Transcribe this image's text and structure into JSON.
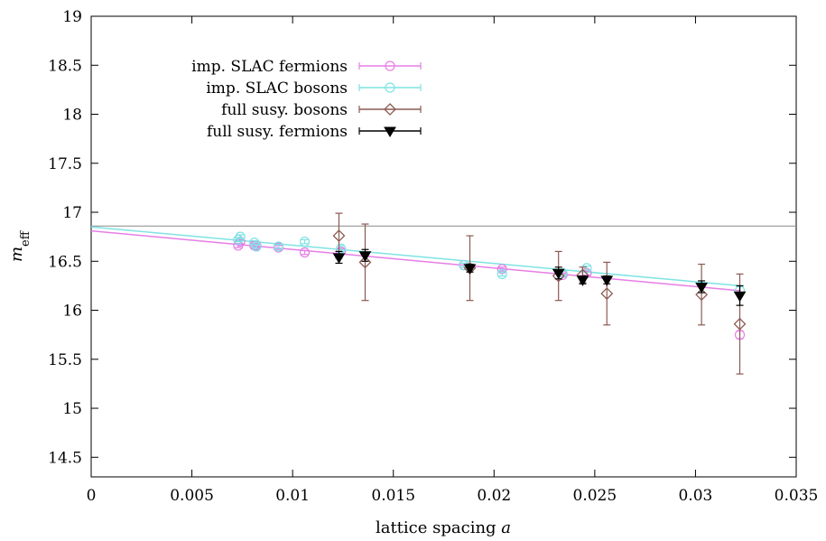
{
  "chart_data": {
    "type": "scatter",
    "xlabel": "lattice spacing a",
    "ylabel": "m_eff",
    "ylabel_main": "m",
    "ylabel_sub": "eff",
    "xlim": [
      0,
      0.035
    ],
    "ylim": [
      14.3,
      19
    ],
    "x_ticks": [
      0,
      0.005,
      0.01,
      0.015,
      0.02,
      0.025,
      0.03,
      0.035
    ],
    "x_tick_labels": [
      "0",
      "0.005",
      "0.01",
      "0.015",
      "0.02",
      "0.025",
      "0.03",
      "0.035"
    ],
    "y_ticks": [
      14.5,
      15,
      15.5,
      16,
      16.5,
      17,
      17.5,
      18,
      18.5,
      19
    ],
    "y_tick_labels": [
      "14.5",
      "15",
      "15.5",
      "16",
      "16.5",
      "17",
      "17.5",
      "18",
      "18.5",
      "19"
    ],
    "legend_position": "top-left",
    "reference_line": {
      "y": 16.86,
      "color": "#888888"
    },
    "series": [
      {
        "name": "imp. SLAC fermions",
        "color": "#e67ee6",
        "marker": "circle-open",
        "x": [
          0.0073,
          0.0074,
          0.0081,
          0.0082,
          0.0093,
          0.0106,
          0.0124,
          0.0185,
          0.0204,
          0.0234,
          0.0246,
          0.0322
        ],
        "y": [
          16.66,
          16.7,
          16.66,
          16.66,
          16.64,
          16.59,
          16.6,
          16.46,
          16.42,
          16.36,
          16.38,
          15.75
        ],
        "err": [
          0.02,
          0.02,
          0.02,
          0.02,
          0.02,
          0.02,
          0.03,
          0.02,
          0.02,
          0.02,
          0.02,
          0.04
        ],
        "fit": {
          "x": [
            0,
            0.0322
          ],
          "y": [
            16.81,
            16.2
          ]
        }
      },
      {
        "name": "imp. SLAC bosons",
        "color": "#7fe3e3",
        "marker": "circle-open",
        "x": [
          0.0073,
          0.0074,
          0.0081,
          0.0082,
          0.0093,
          0.0106,
          0.0124,
          0.0185,
          0.0204,
          0.0234,
          0.0246,
          0.0322
        ],
        "y": [
          16.72,
          16.75,
          16.69,
          16.65,
          16.65,
          16.7,
          16.63,
          16.46,
          16.37,
          16.38,
          16.43,
          16.2
        ],
        "err": [
          0.02,
          0.02,
          0.02,
          0.02,
          0.02,
          0.02,
          0.03,
          0.02,
          0.02,
          0.02,
          0.02,
          0.04
        ],
        "fit": {
          "x": [
            0,
            0.0322
          ],
          "y": [
            16.85,
            16.25
          ]
        }
      },
      {
        "name": "full susy. bosons",
        "color": "#8b5a52",
        "marker": "diamond-open",
        "x": [
          0.0123,
          0.0136,
          0.0188,
          0.0232,
          0.0244,
          0.0256,
          0.0303,
          0.0322
        ],
        "y": [
          16.76,
          16.49,
          16.43,
          16.35,
          16.36,
          16.17,
          16.16,
          15.86
        ],
        "err": [
          0.23,
          0.39,
          0.33,
          0.25,
          0.08,
          0.32,
          0.31,
          0.51
        ]
      },
      {
        "name": "full susy. fermions",
        "color": "#000000",
        "marker": "triangle-down-filled",
        "x": [
          0.0123,
          0.0136,
          0.0188,
          0.0232,
          0.0244,
          0.0256,
          0.0303,
          0.0322
        ],
        "y": [
          16.54,
          16.56,
          16.43,
          16.38,
          16.31,
          16.31,
          16.24,
          16.15
        ],
        "err": [
          0.06,
          0.06,
          0.04,
          0.06,
          0.04,
          0.04,
          0.06,
          0.1
        ]
      }
    ]
  }
}
